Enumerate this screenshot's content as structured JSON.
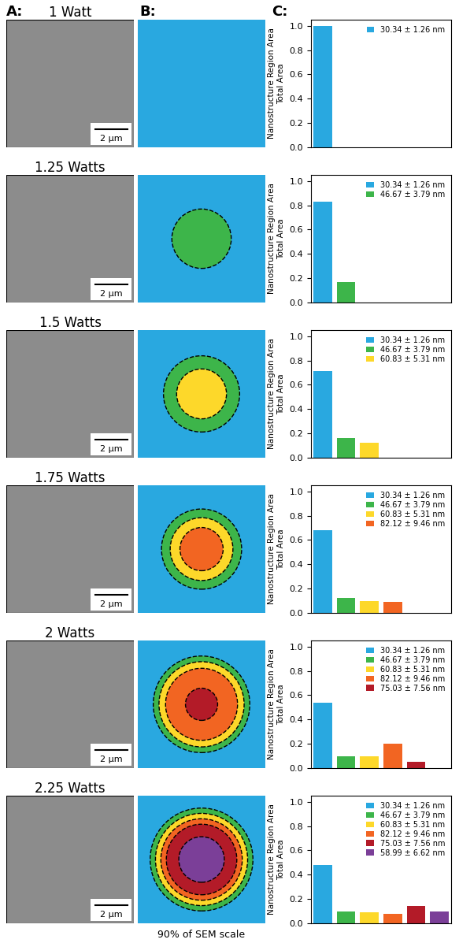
{
  "headers": {
    "A": "A:",
    "B": "B:",
    "C": "C:"
  },
  "footer": "90% of SEM scale",
  "scale_bar": "2 µm",
  "chart_data": [
    {
      "type": "bar",
      "title": "1 Watt",
      "ylabel": [
        "Nanostructure Region Area",
        "Total Area"
      ],
      "categories": [
        "30.34 ± 1.26 nm"
      ],
      "values": [
        1.0
      ],
      "colors": [
        "#29a8e0"
      ],
      "xlim": [
        -0.5,
        5.5
      ],
      "ylim": [
        0,
        1.05
      ],
      "yticks": [
        {
          "value": 0,
          "label": "0.0"
        },
        {
          "value": 0.2,
          "label": "0.2"
        },
        {
          "value": 0.4,
          "label": "0.4"
        },
        {
          "value": 0.6,
          "label": "0.6"
        },
        {
          "value": 0.8,
          "label": "0.8"
        },
        {
          "value": 1.0,
          "label": "1.0"
        }
      ],
      "legend": "upper right",
      "tick_labels": "y"
    },
    {
      "type": "bar",
      "title": "1.25 Watts",
      "ylabel": [
        "Nanostructure Region Area",
        "Total Area"
      ],
      "categories": [
        "30.34 ± 1.26 nm",
        "46.67 ± 3.79 nm"
      ],
      "values": [
        0.83,
        0.17
      ],
      "colors": [
        "#29a8e0",
        "#3db54a"
      ],
      "xlim": [
        -0.5,
        5.5
      ],
      "ylim": [
        0,
        1.05
      ],
      "yticks": [
        {
          "value": 0,
          "label": "0.0"
        },
        {
          "value": 0.2,
          "label": "0.2"
        },
        {
          "value": 0.4,
          "label": "0.4"
        },
        {
          "value": 0.6,
          "label": "0.6"
        },
        {
          "value": 0.8,
          "label": "0.8"
        },
        {
          "value": 1.0,
          "label": "1.0"
        }
      ],
      "legend": "upper right",
      "tick_labels": "y"
    },
    {
      "type": "bar",
      "title": "1.5 Watts",
      "ylabel": [
        "Nanostructure Region Area",
        "Total Area"
      ],
      "categories": [
        "30.34 ± 1.26 nm",
        "46.67 ± 3.79 nm",
        "60.83 ± 5.31 nm"
      ],
      "values": [
        0.71,
        0.16,
        0.12
      ],
      "colors": [
        "#29a8e0",
        "#3db54a",
        "#fdd82a"
      ],
      "xlim": [
        -0.5,
        5.5
      ],
      "ylim": [
        0,
        1.05
      ],
      "yticks": [
        {
          "value": 0,
          "label": "0.0"
        },
        {
          "value": 0.2,
          "label": "0.2"
        },
        {
          "value": 0.4,
          "label": "0.4"
        },
        {
          "value": 0.6,
          "label": "0.6"
        },
        {
          "value": 0.8,
          "label": "0.8"
        },
        {
          "value": 1.0,
          "label": "1.0"
        }
      ],
      "legend": "upper right",
      "tick_labels": "y"
    },
    {
      "type": "bar",
      "title": "1.75 Watts",
      "ylabel": [
        "Nanostructure Region Area",
        "Total Area"
      ],
      "categories": [
        "30.34 ± 1.26 nm",
        "46.67 ± 3.79 nm",
        "60.83 ± 5.31 nm",
        "82.12 ± 9.46 nm"
      ],
      "values": [
        0.68,
        0.12,
        0.1,
        0.09
      ],
      "colors": [
        "#29a8e0",
        "#3db54a",
        "#fdd82a",
        "#f26522"
      ],
      "xlim": [
        -0.5,
        5.5
      ],
      "ylim": [
        0,
        1.05
      ],
      "yticks": [
        {
          "value": 0,
          "label": "0.0"
        },
        {
          "value": 0.2,
          "label": "0.2"
        },
        {
          "value": 0.4,
          "label": "0.4"
        },
        {
          "value": 0.6,
          "label": "0.6"
        },
        {
          "value": 0.8,
          "label": "0.8"
        },
        {
          "value": 1.0,
          "label": "1.0"
        }
      ],
      "legend": "upper right",
      "tick_labels": "y"
    },
    {
      "type": "bar",
      "title": "2 Watts",
      "ylabel": [
        "Nanostructure Region Area",
        "Total Area"
      ],
      "categories": [
        "30.34 ± 1.26 nm",
        "46.67 ± 3.79 nm",
        "60.83 ± 5.31 nm",
        "82.12 ± 9.46 nm",
        "75.03 ± 7.56 nm"
      ],
      "values": [
        0.54,
        0.1,
        0.1,
        0.2,
        0.05
      ],
      "colors": [
        "#29a8e0",
        "#3db54a",
        "#fdd82a",
        "#f26522",
        "#b31b28"
      ],
      "xlim": [
        -0.5,
        5.5
      ],
      "ylim": [
        0,
        1.05
      ],
      "yticks": [
        {
          "value": 0,
          "label": "0.0"
        },
        {
          "value": 0.2,
          "label": "0.2"
        },
        {
          "value": 0.4,
          "label": "0.4"
        },
        {
          "value": 0.6,
          "label": "0.6"
        },
        {
          "value": 0.8,
          "label": "0.8"
        },
        {
          "value": 1.0,
          "label": "1.0"
        }
      ],
      "legend": "upper right",
      "tick_labels": "y"
    },
    {
      "type": "bar",
      "title": "2.25 Watts",
      "ylabel": [
        "Nanostructure Region Area",
        "Total Area"
      ],
      "categories": [
        "30.34 ± 1.26 nm",
        "46.67 ± 3.79 nm",
        "60.83 ± 5.31 nm",
        "82.12 ± 9.46 nm",
        "75.03 ± 7.56 nm",
        "58.99 ± 6.62 nm"
      ],
      "values": [
        0.48,
        0.1,
        0.09,
        0.08,
        0.14,
        0.1
      ],
      "colors": [
        "#29a8e0",
        "#3db54a",
        "#fdd82a",
        "#f26522",
        "#b31b28",
        "#7b3f98"
      ],
      "xlim": [
        -0.5,
        5.5
      ],
      "ylim": [
        0,
        1.05
      ],
      "yticks": [
        {
          "value": 0,
          "label": "0.0"
        },
        {
          "value": 0.2,
          "label": "0.2"
        },
        {
          "value": 0.4,
          "label": "0.4"
        },
        {
          "value": 0.6,
          "label": "0.6"
        },
        {
          "value": 0.8,
          "label": "0.8"
        },
        {
          "value": 1.0,
          "label": "1.0"
        }
      ],
      "legend": "upper right",
      "tick_labels": "y"
    }
  ]
}
